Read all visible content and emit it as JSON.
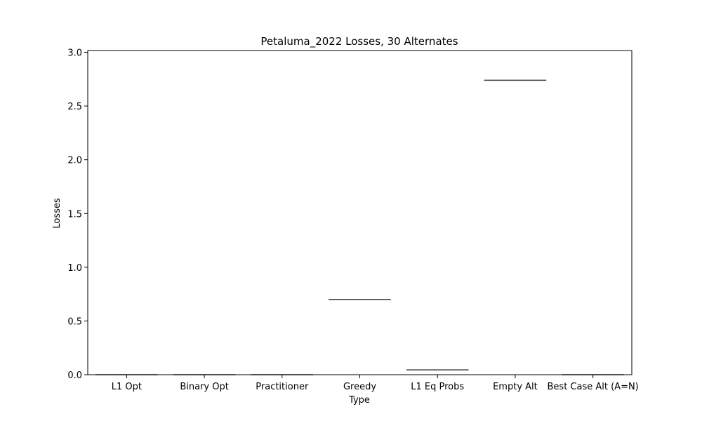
{
  "chart_data": {
    "type": "box",
    "title": "Petaluma_2022 Losses, 30 Alternates",
    "xlabel": "Type",
    "ylabel": "Losses",
    "ylim": [
      0,
      3.0
    ],
    "yticks": [
      0.0,
      0.5,
      1.0,
      1.5,
      2.0,
      2.5,
      3.0
    ],
    "ytick_labels": [
      "0.0",
      "0.5",
      "1.0",
      "1.5",
      "2.0",
      "2.5",
      "3.0"
    ],
    "categories": [
      "L1 Opt",
      "Binary Opt",
      "Practitioner",
      "Greedy",
      "L1 Eq Probs",
      "Empty Alt",
      "Best Case Alt (A=N)"
    ],
    "values": [
      0.0,
      0.0,
      0.0,
      0.7,
      0.045,
      2.74,
      0.0
    ],
    "grid": false,
    "line_color": "#3f3f3f"
  }
}
